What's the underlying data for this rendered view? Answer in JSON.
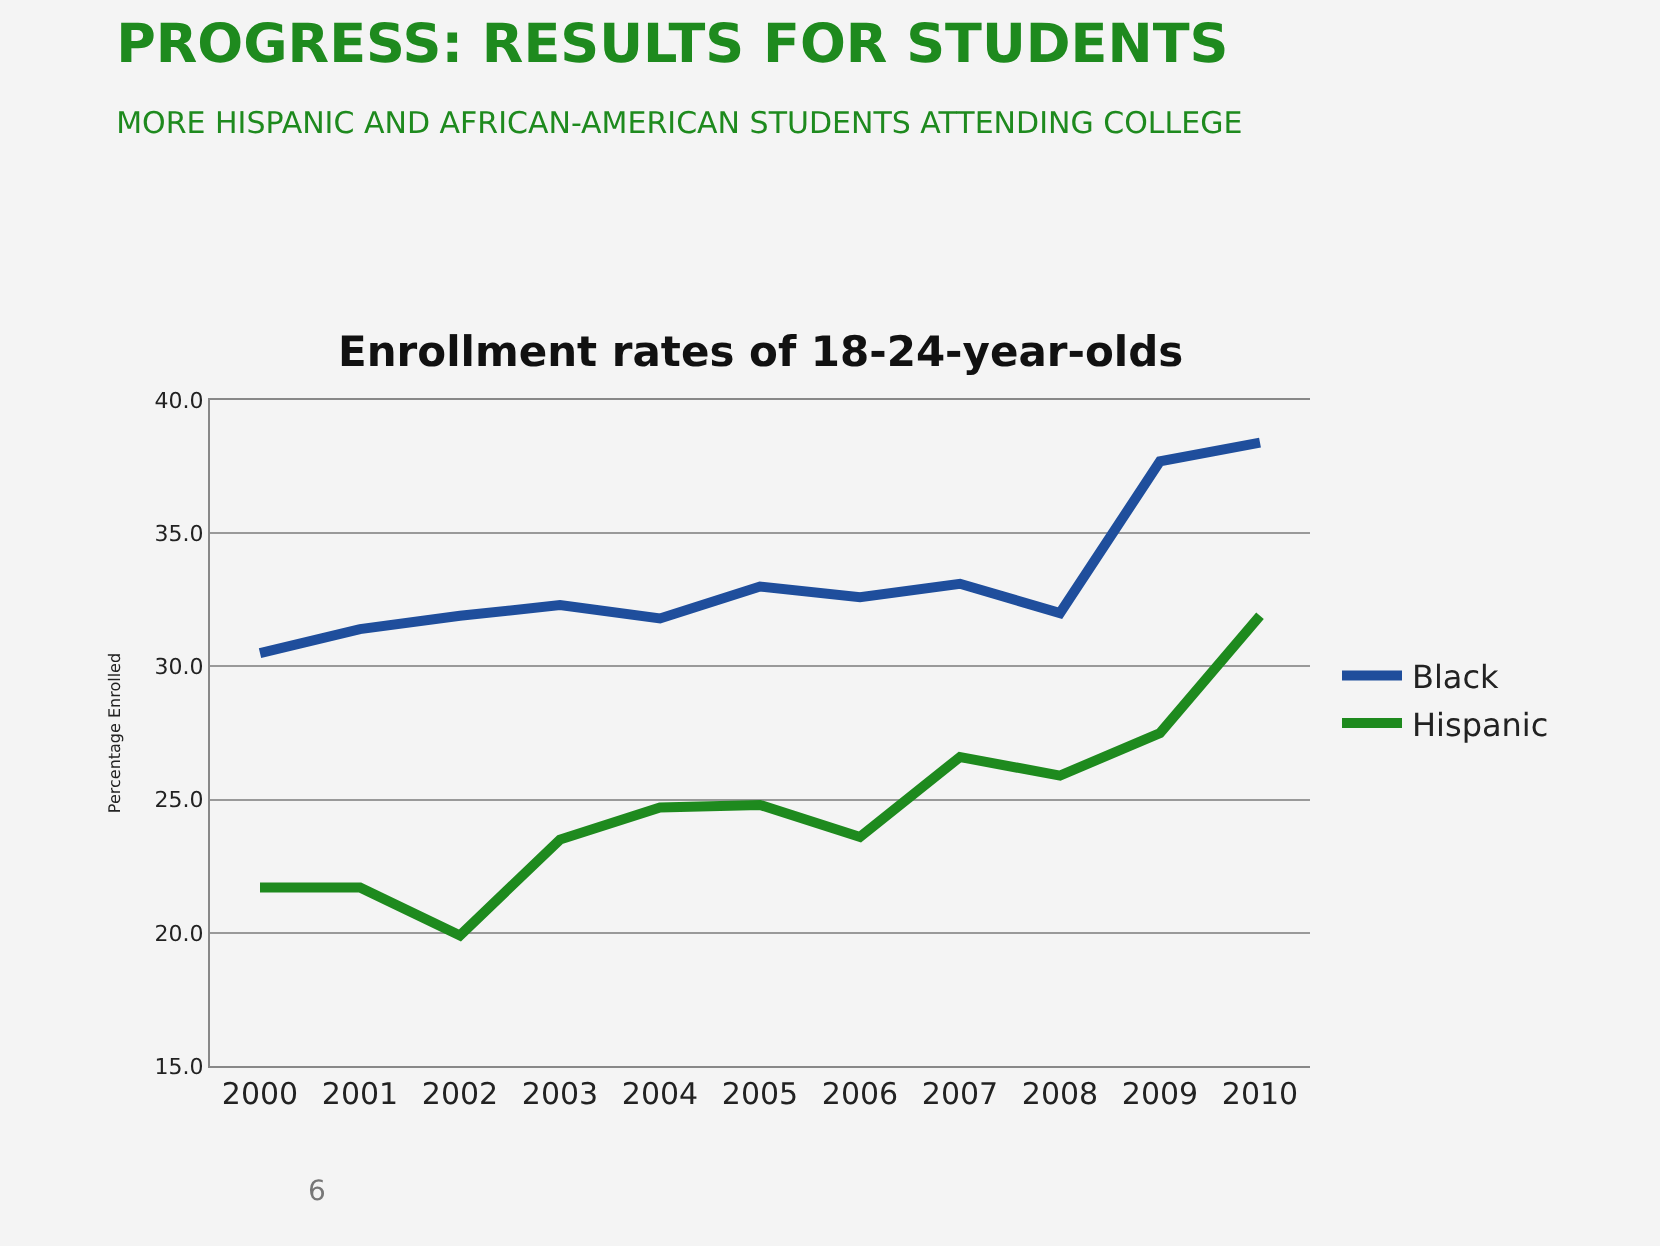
{
  "chart_data": {
    "type": "line",
    "title": "PROGRESS: RESULTS FOR STUDENTS",
    "subtitle": "MORE HISPANIC AND AFRICAN-AMERICAN STUDENTS ATTENDING COLLEGE",
    "annotations": [
      "Enrollment rates of 18-24-year-olds",
      "6"
    ],
    "ylabel": "Percentage Enrolled",
    "categories": [
      "2000",
      "2001",
      "2002",
      "2003",
      "2004",
      "2005",
      "2006",
      "2007",
      "2008",
      "2009",
      "2010"
    ],
    "series": [
      {
        "name": "Black",
        "color": "#1f4e9c",
        "values": [
          30.5,
          31.4,
          31.9,
          32.3,
          31.8,
          33.0,
          32.6,
          33.1,
          32.0,
          37.7,
          38.4
        ]
      },
      {
        "name": "Hispanic",
        "color": "#1e8a1e",
        "values": [
          21.7,
          21.7,
          19.9,
          23.5,
          24.7,
          24.8,
          23.6,
          26.6,
          25.9,
          27.5,
          31.9
        ]
      }
    ],
    "ylim": [
      15,
      40
    ],
    "yticks": [
      {
        "value": 15,
        "label": "15.0"
      },
      {
        "value": 20,
        "label": "20.0"
      },
      {
        "value": 25,
        "label": "25.0"
      },
      {
        "value": 30,
        "label": "30.0"
      },
      {
        "value": 35,
        "label": "35.0"
      },
      {
        "value": 40,
        "label": "40.0"
      }
    ],
    "grid": "y",
    "legend": "right",
    "marker": "none",
    "line_style": "solid"
  }
}
